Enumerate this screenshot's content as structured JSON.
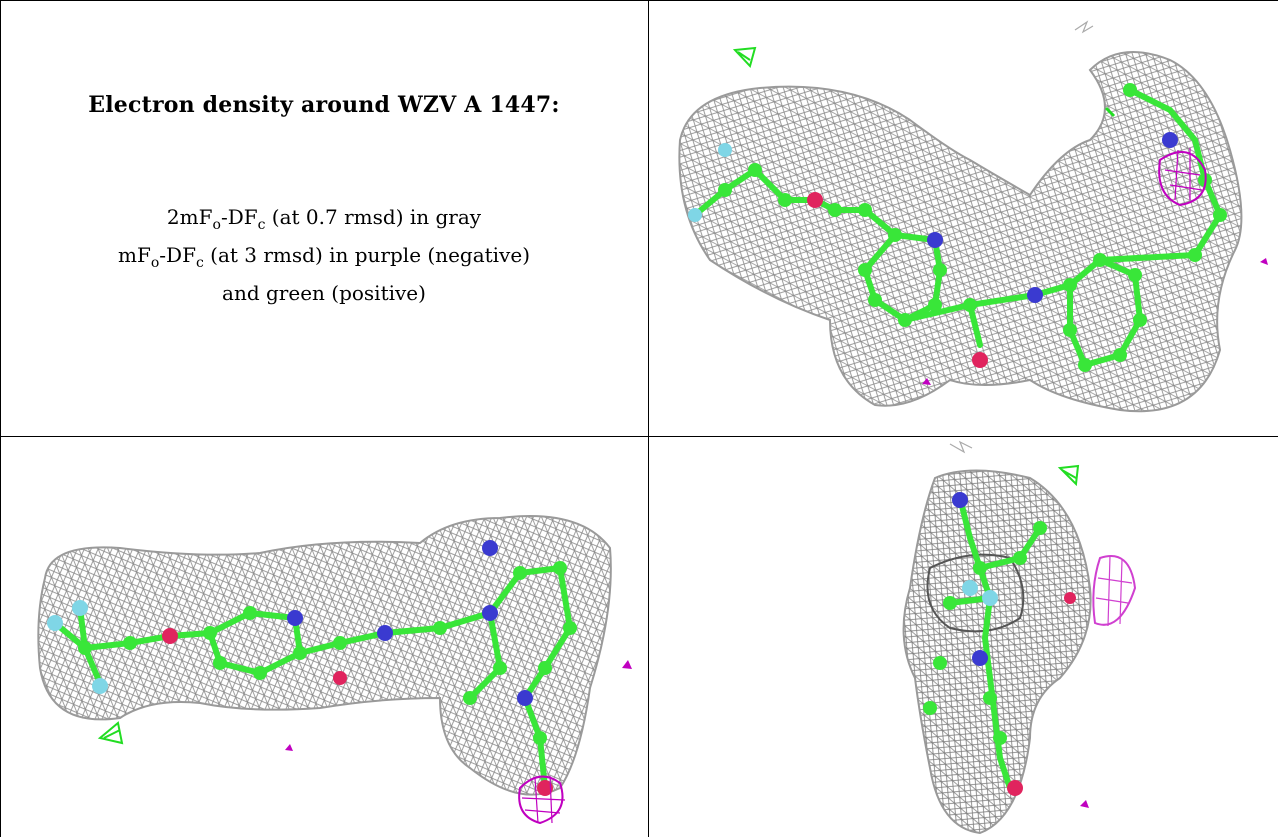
{
  "caption": {
    "title": "Electron density around WZV A 1447:",
    "line1": {
      "a": "2mF",
      "s1": "o",
      "b": "-DF",
      "s2": "c",
      "c": " (at 0.7 rmsd) in gray"
    },
    "line2": {
      "a": "mF",
      "s1": "o",
      "b": "-DF",
      "s2": "c",
      "c": " (at 3 rmsd) in purple (negative)"
    },
    "line3": "and green (positive)"
  },
  "colors": {
    "mesh": "#8a8a8a",
    "carbon": "#39e639",
    "nitrogen": "#3a3ad0",
    "oxygen": "#e0245e",
    "fluorine": "#7fd6e6",
    "negative_density": "#c000c0",
    "positive_density": "#22dd22"
  }
}
